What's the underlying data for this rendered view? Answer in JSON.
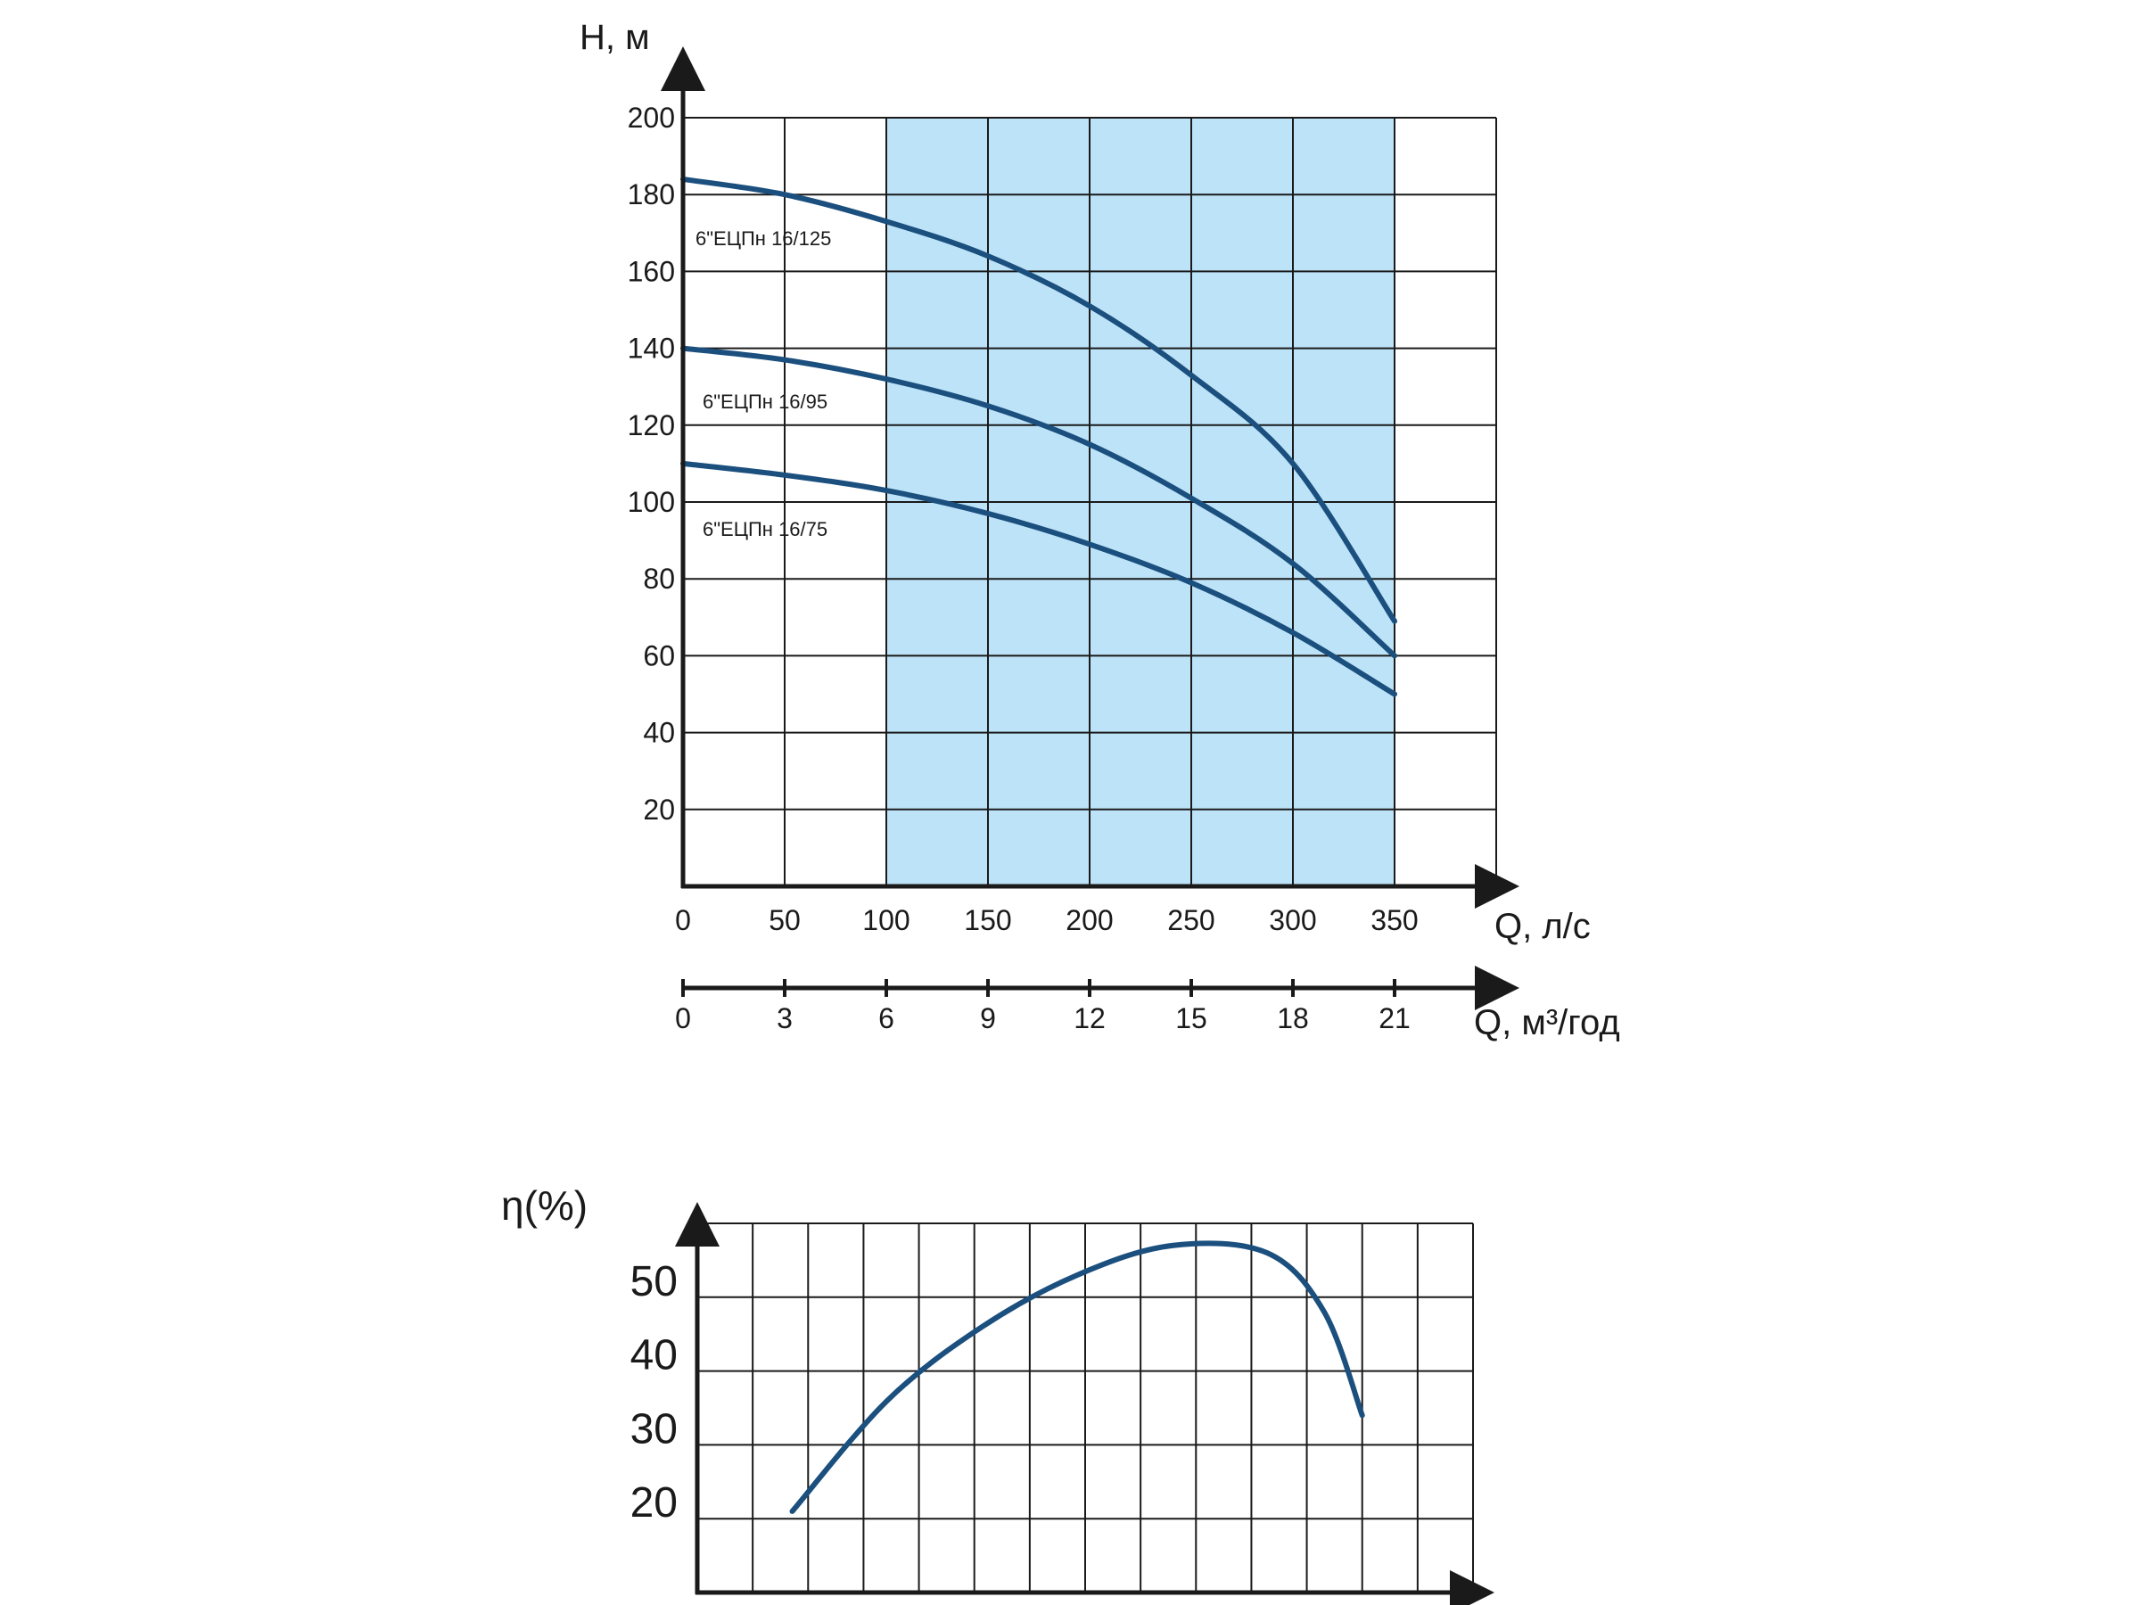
{
  "colors": {
    "curve": "#1b4f7e",
    "fill": "#bde3f8",
    "grid": "#1a1a1a",
    "axis": "#1a1a1a",
    "background": "#ffffff"
  },
  "chart_data": [
    {
      "type": "line",
      "title": "",
      "ylabel": "H, м",
      "xlabel": "Q, л/с",
      "xlabel2": "Q, м³/год",
      "xlim": [
        0,
        400
      ],
      "ylim": [
        0,
        200
      ],
      "x_ticks": [
        "0",
        "50",
        "100",
        "150",
        "200",
        "250",
        "300",
        "350"
      ],
      "x_tick_values": [
        0,
        50,
        100,
        150,
        200,
        250,
        300,
        350
      ],
      "x2_ticks": [
        "0",
        "3",
        "6",
        "9",
        "12",
        "15",
        "18",
        "21"
      ],
      "y_ticks": [
        "20",
        "40",
        "60",
        "80",
        "100",
        "120",
        "140",
        "160",
        "180",
        "200"
      ],
      "y_tick_values": [
        20,
        40,
        60,
        80,
        100,
        120,
        140,
        160,
        180,
        200
      ],
      "grid": true,
      "shaded_range": [
        100,
        350
      ],
      "series": [
        {
          "name": "6\"ЕЦПн 16/125",
          "x": [
            0,
            50,
            100,
            150,
            200,
            250,
            300,
            350
          ],
          "y": [
            184,
            180,
            173,
            164,
            151,
            133,
            110,
            69
          ]
        },
        {
          "name": "6\"ЕЦПн 16/95",
          "x": [
            0,
            50,
            100,
            150,
            200,
            250,
            300,
            350
          ],
          "y": [
            140,
            137,
            132,
            125,
            115,
            101,
            84,
            60
          ]
        },
        {
          "name": "6\"ЕЦПн 16/75",
          "x": [
            0,
            50,
            100,
            150,
            200,
            250,
            300,
            350
          ],
          "y": [
            110,
            107,
            103,
            97,
            89,
            79,
            66,
            50
          ]
        }
      ]
    },
    {
      "type": "line",
      "title": "",
      "ylabel": "η(%)",
      "xlabel": "",
      "ylim": [
        10,
        60
      ],
      "y_ticks": [
        "20",
        "30",
        "40",
        "50"
      ],
      "y_tick_values": [
        20,
        30,
        40,
        50
      ],
      "grid_columns": 14,
      "grid": true,
      "series": [
        {
          "name": "",
          "x": [
            50,
            100,
            150,
            200,
            250,
            300,
            330,
            350
          ],
          "y": [
            21,
            36,
            46,
            53,
            57,
            56,
            48,
            34
          ]
        }
      ]
    }
  ]
}
